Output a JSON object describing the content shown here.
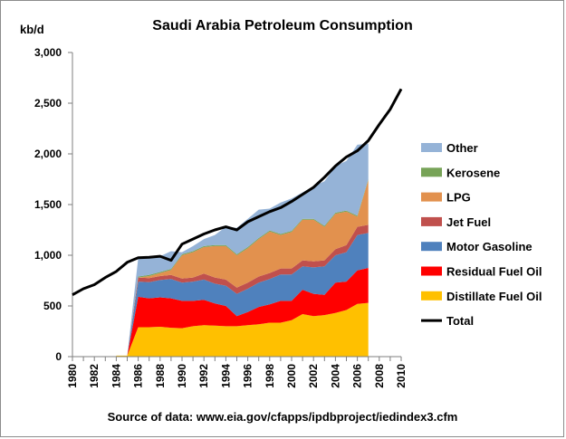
{
  "colors": {
    "Distillate Fuel Oil": "#ffc000",
    "Residual Fuel Oil": "#ff0000",
    "Motor Gasoline": "#4f81bd",
    "Jet Fuel": "#c0504d",
    "LPG": "#e2914e",
    "Kerosene": "#77a357",
    "Other": "#95b3d7",
    "Total": "#000000"
  },
  "chart_data": {
    "type": "area",
    "title": "Saudi Arabia Petroleum Consumption",
    "ylabel": "kb/d",
    "source": "Source of data: www.eia.gov/cfapps/ipdbproject/iedindex3.cfm",
    "xlim": [
      1980,
      2010
    ],
    "ylim": [
      0,
      3000
    ],
    "yticks": [
      0,
      500,
      1000,
      1500,
      2000,
      2500,
      3000
    ],
    "ytick_labels": [
      "0",
      "500",
      "1,000",
      "1,500",
      "2,000",
      "2,500",
      "3,000"
    ],
    "xticks": [
      1980,
      1982,
      1984,
      1986,
      1988,
      1990,
      1992,
      1994,
      1996,
      1998,
      2000,
      2002,
      2004,
      2006,
      2008,
      2010
    ],
    "xtick_labels": [
      "1980",
      "1982",
      "1984",
      "1986",
      "1988",
      "1990",
      "1992",
      "1994",
      "1996",
      "1998",
      "2000",
      "2002",
      "2004",
      "2006",
      "2008",
      "2010"
    ],
    "grid": "none",
    "legend_position": "right",
    "legend_order": [
      "Other",
      "Kerosene",
      "LPG",
      "Jet Fuel",
      "Motor Gasoline",
      "Residual Fuel Oil",
      "Distillate Fuel Oil",
      "Total"
    ],
    "stacked_years": [
      1984,
      1985,
      1986,
      1987,
      1988,
      1989,
      1990,
      1991,
      1992,
      1993,
      1994,
      1995,
      1996,
      1997,
      1998,
      1999,
      2000,
      2001,
      2002,
      2003,
      2004,
      2005,
      2006,
      2007
    ],
    "series": [
      {
        "name": "Distillate Fuel Oil",
        "values": [
          10,
          10,
          290,
          290,
          295,
          285,
          280,
          300,
          310,
          305,
          300,
          300,
          310,
          320,
          335,
          335,
          360,
          420,
          400,
          410,
          430,
          460,
          520,
          530
        ]
      },
      {
        "name": "Residual Fuel Oil",
        "values": [
          0,
          0,
          300,
          285,
          290,
          290,
          270,
          250,
          250,
          220,
          200,
          100,
          130,
          170,
          180,
          215,
          190,
          240,
          220,
          200,
          300,
          280,
          330,
          345
        ]
      },
      {
        "name": "Motor Gasoline",
        "values": [
          0,
          0,
          150,
          160,
          170,
          190,
          180,
          190,
          200,
          195,
          200,
          220,
          230,
          240,
          250,
          260,
          260,
          230,
          260,
          280,
          270,
          290,
          350,
          345
        ]
      },
      {
        "name": "Jet Fuel",
        "values": [
          0,
          0,
          40,
          40,
          40,
          40,
          40,
          40,
          60,
          60,
          60,
          60,
          60,
          60,
          60,
          60,
          60,
          60,
          60,
          60,
          60,
          70,
          80,
          80
        ]
      },
      {
        "name": "LPG",
        "values": [
          0,
          0,
          0,
          20,
          30,
          50,
          230,
          250,
          260,
          310,
          330,
          320,
          340,
          370,
          410,
          330,
          360,
          400,
          410,
          330,
          350,
          330,
          100,
          440
        ]
      },
      {
        "name": "Kerosene",
        "values": [
          0,
          0,
          10,
          10,
          10,
          10,
          10,
          10,
          10,
          10,
          10,
          10,
          10,
          10,
          10,
          10,
          10,
          10,
          10,
          10,
          10,
          10,
          10,
          10
        ]
      },
      {
        "name": "Other",
        "values": [
          0,
          0,
          180,
          175,
          155,
          175,
          20,
          50,
          70,
          100,
          180,
          260,
          280,
          280,
          215,
          310,
          320,
          260,
          320,
          440,
          460,
          490,
          700,
          350
        ]
      }
    ],
    "total": {
      "name": "Total",
      "x": [
        1980,
        1981,
        1982,
        1983,
        1984,
        1985,
        1986,
        1987,
        1988,
        1989,
        1990,
        1991,
        1992,
        1993,
        1994,
        1995,
        1996,
        1997,
        1998,
        1999,
        2000,
        2001,
        2002,
        2003,
        2004,
        2005,
        2006,
        2007,
        2008,
        2009,
        2010
      ],
      "values": [
        610,
        670,
        710,
        780,
        840,
        930,
        975,
        980,
        990,
        950,
        1110,
        1160,
        1210,
        1250,
        1280,
        1250,
        1330,
        1380,
        1430,
        1470,
        1530,
        1600,
        1670,
        1770,
        1880,
        1970,
        2030,
        2130,
        2290,
        2440,
        2640
      ]
    }
  }
}
